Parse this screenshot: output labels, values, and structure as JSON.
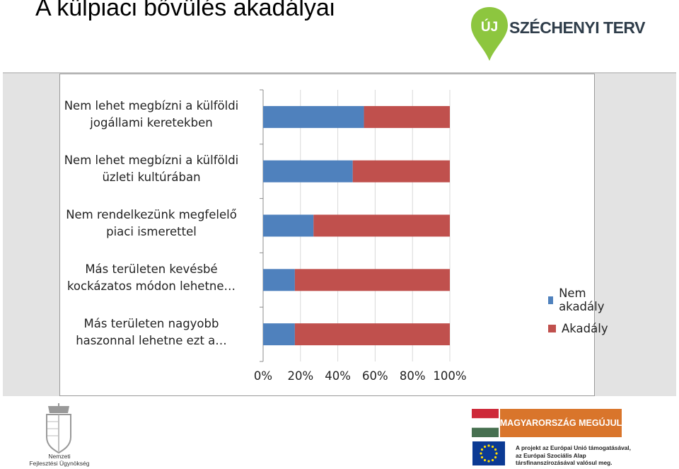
{
  "slide": {
    "title": "A külpiaci bővülés akadályai",
    "brand_logo": {
      "mark": "ÚJ",
      "text": "SZÉCHENYI TERV"
    },
    "footer": {
      "agency_line1": "Nemzeti",
      "agency_line2": "Fejlesztési Ügynökség",
      "banner": "MAGYARORSZÁG MEGÚJUL",
      "eu_line1": "A projekt az Európai Unió támogatásával,",
      "eu_line2": "az Európai Szociális Alap",
      "eu_line3": "társfinanszírozásával valósul meg."
    }
  },
  "chart_data": {
    "type": "bar",
    "orientation": "horizontal",
    "stacked": "percent",
    "title": "",
    "categories": [
      [
        "Nem lehet megbízni a külföldi",
        "jogállami keretekben"
      ],
      [
        "Nem lehet megbízni a külföldi",
        "üzleti kultúrában"
      ],
      [
        "Nem rendelkezünk megfelelő",
        "piaci ismerettel"
      ],
      [
        "Más területen kevésbé",
        "kockázatos módon lehetne…"
      ],
      [
        "Más területen nagyobb",
        "haszonnal lehetne ezt a…"
      ]
    ],
    "series": [
      {
        "name": "Nem akadály",
        "color": "#4f81bd",
        "values": [
          54,
          48,
          27,
          17,
          17
        ]
      },
      {
        "name": "Akadály",
        "color": "#c0504d",
        "values": [
          46,
          52,
          73,
          83,
          83
        ]
      }
    ],
    "x_ticks": [
      "0%",
      "20%",
      "40%",
      "60%",
      "80%",
      "100%"
    ],
    "xlim": [
      0,
      100
    ],
    "grid": true,
    "legend_position": "right"
  }
}
